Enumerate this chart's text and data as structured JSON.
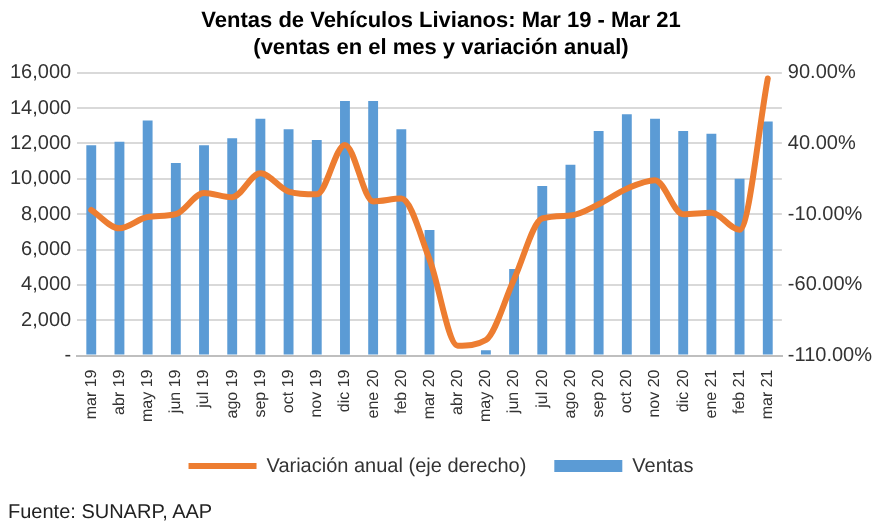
{
  "chart_data": {
    "type": "bar",
    "title": "Ventas de Vehículos Livianos: Mar 19 - Mar 21",
    "subtitle": "(ventas en el mes y variación anual)",
    "categories": [
      "mar 19",
      "abr 19",
      "may 19",
      "jun 19",
      "jul 19",
      "ago 19",
      "sep 19",
      "oct 19",
      "nov 19",
      "dic 19",
      "ene 20",
      "feb 20",
      "mar 20",
      "abr 20",
      "may 20",
      "jun 20",
      "jul 20",
      "ago 20",
      "sep 20",
      "oct 20",
      "nov 20",
      "dic 20",
      "ene 21",
      "feb 21",
      "mar 21"
    ],
    "series": [
      {
        "name": "Ventas",
        "color": "#5b9bd5",
        "values": [
          11900,
          12100,
          13300,
          10900,
          11900,
          12300,
          13400,
          12800,
          12200,
          14400,
          14400,
          12800,
          7100,
          0,
          300,
          4900,
          9600,
          10800,
          12700,
          13650,
          13400,
          12700,
          12550,
          10000,
          13250
        ]
      },
      {
        "name": "Variación anual (eje derecho)",
        "type": "line",
        "axis": "y2",
        "color": "#ed7d31",
        "values": [
          -7,
          -20,
          -12,
          -10,
          5,
          2,
          19,
          6,
          4,
          39,
          -1,
          1,
          -42,
          -103,
          -99,
          -56,
          -13,
          -11,
          -3,
          8,
          14,
          -10,
          -9,
          -21,
          86
        ]
      }
    ],
    "ylim": [
      0,
      16000
    ],
    "yticks": [
      {
        "value": 0,
        "label": "-"
      },
      {
        "value": 2000,
        "label": "2,000"
      },
      {
        "value": 4000,
        "label": "4,000"
      },
      {
        "value": 6000,
        "label": "6,000"
      },
      {
        "value": 8000,
        "label": "8,000"
      },
      {
        "value": 10000,
        "label": "10,000"
      },
      {
        "value": 12000,
        "label": "12,000"
      },
      {
        "value": 14000,
        "label": "14,000"
      },
      {
        "value": 16000,
        "label": "16,000"
      }
    ],
    "y2lim": [
      -110,
      90
    ],
    "y2ticks": [
      {
        "value": -110,
        "label": "-110.00%"
      },
      {
        "value": -60,
        "label": "-60.00%"
      },
      {
        "value": -10,
        "label": "-10.00%"
      },
      {
        "value": 40,
        "label": "40.00%"
      },
      {
        "value": 90,
        "label": "90.00%"
      }
    ],
    "grid": "y",
    "legend": "bottom",
    "marker": "none",
    "annotations": [
      "Fuente: SUNARP, AAP"
    ]
  }
}
